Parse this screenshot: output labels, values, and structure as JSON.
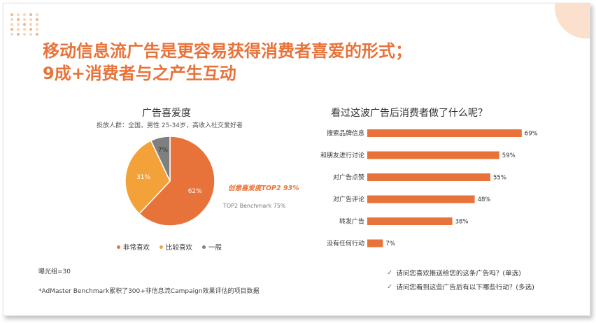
{
  "title": {
    "line1": "移动信息流广告是更容易获得消费者喜爱的形式；",
    "line2": "9成+消费者与之产生互动"
  },
  "colors": {
    "accent": "#e8733a",
    "orange_light": "#f3a23a",
    "gray": "#7f7f7f"
  },
  "left": {
    "title": "广告喜爱度",
    "subtitle": "投放人群：全国，男性 25-34岁，高收入社交爱好者",
    "annotation_top2": "创意喜爱度TOP2 93%",
    "annotation_benchmark": "TOP2 Benchmark 75%"
  },
  "right": {
    "title": "看过这波广告后消费者做了什么呢？"
  },
  "notes": {
    "sample": "曝光组=30",
    "source": "*AdMaster  Benchmark累积了300+非信息流Campaign效果评估的项目数据"
  },
  "questions": [
    {
      "icon": "check-icon",
      "text": "请问您喜欢推送给您的这条广告吗？(单选)"
    },
    {
      "icon": "check-icon",
      "text": "请问您看到这些广告后有以下哪些行动？(多选)"
    }
  ],
  "chart_data": [
    {
      "type": "pie",
      "title": "广告喜爱度",
      "series": [
        {
          "name": "非常喜欢",
          "value": 62,
          "label": "62%",
          "color": "#e8733a"
        },
        {
          "name": "比较喜欢",
          "value": 31,
          "label": "31%",
          "color": "#f3a23a"
        },
        {
          "name": "一般",
          "value": 7,
          "label": "7%",
          "color": "#7f7f7f"
        }
      ],
      "legend": "bottom"
    },
    {
      "type": "bar",
      "orientation": "horizontal",
      "title": "看过这波广告后消费者做了什么呢？",
      "categories": [
        "搜索品牌信息",
        "和朋友进行讨论",
        "对广告点赞",
        "对广告评论",
        "转发广告",
        "没有任何行动"
      ],
      "values": [
        69,
        59,
        55,
        48,
        38,
        7
      ],
      "labels": [
        "69%",
        "59%",
        "55%",
        "48%",
        "38%",
        "7%"
      ],
      "xlim": [
        0,
        100
      ],
      "color": "#e8733a",
      "grid": false
    }
  ]
}
